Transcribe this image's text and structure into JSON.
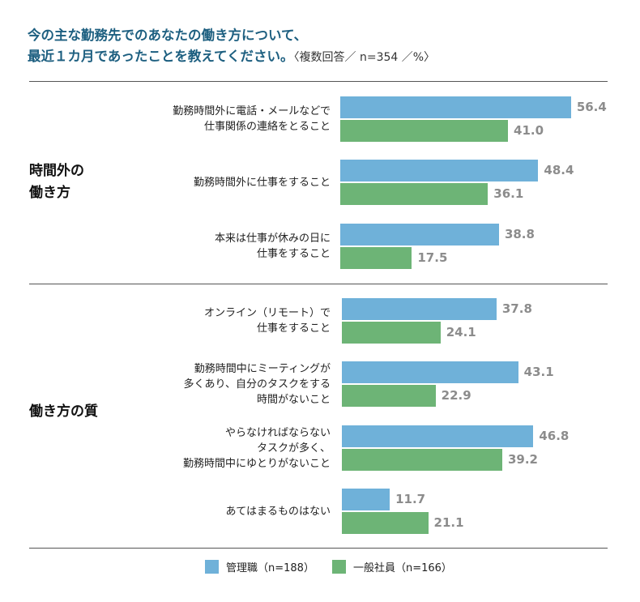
{
  "chart_data": {
    "type": "bar",
    "orientation": "horizontal",
    "title": "今の主な勤務先でのあなたの働き方について、最近１カ月であったことを教えてください。",
    "subtitle": "〈複数回答／ n=354 ／%〉",
    "title_line1": "今の主な勤務先でのあなたの働き方について、",
    "title_line2": "最近１カ月であったことを教えてください。",
    "groups": [
      {
        "label_lines": [
          "時間外の",
          "働き方"
        ],
        "categories": [
          0,
          1,
          2
        ]
      },
      {
        "label_lines": [
          "働き方の質"
        ],
        "categories": [
          3,
          4,
          5,
          6
        ]
      }
    ],
    "categories": [
      [
        "勤務時間外に電話・メールなどで",
        "仕事関係の連絡をとること"
      ],
      [
        "勤務時間外に仕事をすること"
      ],
      [
        "本来は仕事が休みの日に",
        "仕事をすること"
      ],
      [
        "オンライン（リモート）で",
        "仕事をすること"
      ],
      [
        "勤務時間中にミーティングが",
        "多くあり、自分のタスクをする",
        "時間がないこと"
      ],
      [
        "やらなければならない",
        "タスクが多く、",
        "勤務時間中にゆとりがないこと"
      ],
      [
        "あてはまるものはない"
      ]
    ],
    "series": [
      {
        "name": "管理職（n=188）",
        "color": "#6fb1d9",
        "values": [
          56.4,
          48.4,
          38.8,
          37.8,
          43.1,
          46.8,
          11.7
        ]
      },
      {
        "name": "一般社員（n=166）",
        "color": "#6db476",
        "values": [
          41.0,
          36.1,
          17.5,
          24.1,
          22.9,
          39.2,
          21.1
        ]
      }
    ],
    "legend": "bottom",
    "grid": false,
    "xlim": [
      0,
      60
    ]
  }
}
